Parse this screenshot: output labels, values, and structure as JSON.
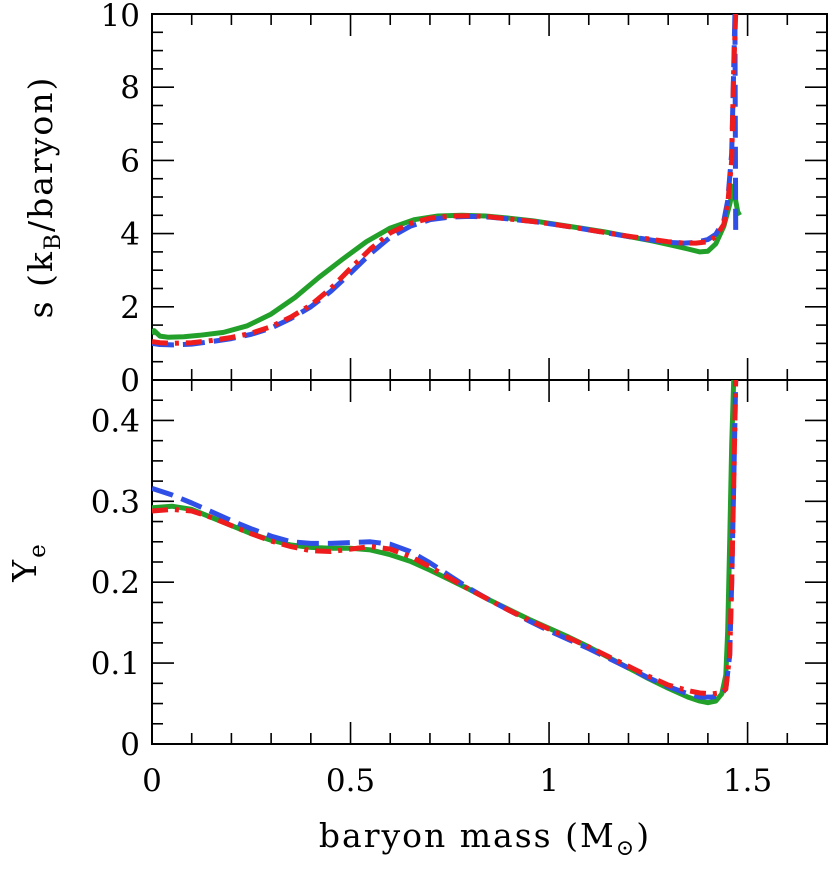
{
  "chart_data": [
    {
      "type": "line",
      "panel": "top",
      "xlabel": "",
      "ylabel": "s (k_B/baryon)",
      "ylabel_parts": {
        "prefix": "s (k",
        "sub": "B",
        "suffix": "/baryon)"
      },
      "xlim": [
        0,
        1.7
      ],
      "ylim": [
        0,
        10
      ],
      "yticks_major": [
        0,
        2,
        4,
        6,
        8,
        10
      ],
      "ytick_labels": [
        "0",
        "2",
        "4",
        "6",
        "8",
        "10"
      ],
      "series": [
        {
          "name": "green-solid",
          "color": "#22a02a",
          "style": "solid",
          "x": [
            0.0,
            0.005,
            0.01,
            0.02,
            0.04,
            0.08,
            0.12,
            0.18,
            0.24,
            0.3,
            0.36,
            0.42,
            0.48,
            0.54,
            0.6,
            0.66,
            0.72,
            0.78,
            0.84,
            0.9,
            0.96,
            1.02,
            1.08,
            1.14,
            1.2,
            1.26,
            1.31,
            1.35,
            1.38,
            1.4,
            1.42,
            1.44,
            1.455,
            1.465,
            1.47,
            1.475,
            1.48
          ],
          "y": [
            1.25,
            1.35,
            1.3,
            1.2,
            1.17,
            1.18,
            1.22,
            1.3,
            1.48,
            1.8,
            2.25,
            2.8,
            3.3,
            3.78,
            4.15,
            4.38,
            4.48,
            4.5,
            4.48,
            4.42,
            4.35,
            4.25,
            4.15,
            4.05,
            3.92,
            3.8,
            3.68,
            3.58,
            3.5,
            3.52,
            3.72,
            4.2,
            4.8,
            5.3,
            4.9,
            4.6,
            4.5
          ]
        },
        {
          "name": "blue-dashed",
          "color": "#2f4fe6",
          "style": "dashed",
          "x": [
            0.0,
            0.02,
            0.05,
            0.1,
            0.15,
            0.2,
            0.25,
            0.3,
            0.35,
            0.4,
            0.45,
            0.5,
            0.55,
            0.6,
            0.65,
            0.7,
            0.75,
            0.8,
            0.85,
            0.9,
            0.96,
            1.02,
            1.08,
            1.14,
            1.2,
            1.26,
            1.3,
            1.34,
            1.37,
            1.4,
            1.42,
            1.44,
            1.45,
            1.46,
            1.465,
            1.468,
            1.47
          ],
          "y": [
            1.0,
            0.97,
            0.96,
            0.98,
            1.05,
            1.13,
            1.25,
            1.42,
            1.68,
            2.0,
            2.42,
            2.92,
            3.45,
            3.9,
            4.2,
            4.38,
            4.45,
            4.47,
            4.45,
            4.4,
            4.33,
            4.24,
            4.14,
            4.03,
            3.92,
            3.82,
            3.76,
            3.74,
            3.76,
            3.84,
            3.98,
            4.35,
            4.9,
            6.2,
            8.5,
            10.0,
            4.1
          ]
        },
        {
          "name": "red-dashdot",
          "color": "#ee1c1c",
          "style": "dashdot",
          "x": [
            0.0,
            0.02,
            0.05,
            0.1,
            0.15,
            0.2,
            0.25,
            0.3,
            0.35,
            0.4,
            0.45,
            0.5,
            0.55,
            0.6,
            0.65,
            0.7,
            0.75,
            0.8,
            0.85,
            0.9,
            0.96,
            1.02,
            1.08,
            1.14,
            1.2,
            1.26,
            1.3,
            1.34,
            1.37,
            1.4,
            1.42,
            1.44,
            1.45,
            1.46,
            1.465,
            1.47
          ],
          "y": [
            1.05,
            1.02,
            1.0,
            1.02,
            1.08,
            1.16,
            1.28,
            1.46,
            1.72,
            2.05,
            2.5,
            3.05,
            3.58,
            4.02,
            4.28,
            4.42,
            4.48,
            4.49,
            4.46,
            4.4,
            4.33,
            4.24,
            4.14,
            4.03,
            3.93,
            3.84,
            3.78,
            3.74,
            3.74,
            3.78,
            3.92,
            4.25,
            4.8,
            6.0,
            8.5,
            10.0
          ]
        }
      ]
    },
    {
      "type": "line",
      "panel": "bottom",
      "xlabel": "baryon mass (M⊙)",
      "xlabel_parts": {
        "prefix": "baryon mass (M",
        "sub": "⊙",
        "suffix": ")"
      },
      "ylabel": "Y_e",
      "ylabel_parts": {
        "prefix": "Y",
        "sub": "e",
        "suffix": ""
      },
      "xlim": [
        0,
        1.7
      ],
      "ylim": [
        0,
        0.45
      ],
      "xticks_major": [
        0,
        0.5,
        1,
        1.5
      ],
      "xtick_labels": [
        "0",
        "0.5",
        "1",
        "1.5"
      ],
      "yticks_major": [
        0,
        0.1,
        0.2,
        0.3,
        0.4
      ],
      "ytick_labels": [
        "0",
        "0.1",
        "0.2",
        "0.3",
        "0.4"
      ],
      "series": [
        {
          "name": "green-solid",
          "color": "#22a02a",
          "style": "solid",
          "x": [
            0.0,
            0.05,
            0.1,
            0.15,
            0.2,
            0.25,
            0.3,
            0.35,
            0.4,
            0.45,
            0.5,
            0.55,
            0.6,
            0.65,
            0.7,
            0.75,
            0.8,
            0.85,
            0.9,
            0.95,
            1.0,
            1.05,
            1.1,
            1.15,
            1.2,
            1.25,
            1.3,
            1.35,
            1.38,
            1.4,
            1.42,
            1.435,
            1.445,
            1.45,
            1.455,
            1.46,
            1.465
          ],
          "y": [
            0.292,
            0.294,
            0.29,
            0.28,
            0.27,
            0.26,
            0.252,
            0.246,
            0.243,
            0.242,
            0.242,
            0.24,
            0.234,
            0.226,
            0.215,
            0.203,
            0.191,
            0.178,
            0.166,
            0.154,
            0.143,
            0.132,
            0.12,
            0.107,
            0.094,
            0.081,
            0.069,
            0.058,
            0.053,
            0.051,
            0.053,
            0.062,
            0.085,
            0.14,
            0.25,
            0.37,
            0.45
          ]
        },
        {
          "name": "blue-dashed",
          "color": "#2f4fe6",
          "style": "dashed",
          "x": [
            0.0,
            0.05,
            0.1,
            0.15,
            0.2,
            0.25,
            0.3,
            0.35,
            0.4,
            0.45,
            0.5,
            0.55,
            0.6,
            0.65,
            0.7,
            0.75,
            0.8,
            0.85,
            0.9,
            0.95,
            1.0,
            1.05,
            1.1,
            1.15,
            1.2,
            1.25,
            1.3,
            1.35,
            1.38,
            1.41,
            1.43,
            1.445,
            1.455,
            1.46,
            1.465,
            1.47
          ],
          "y": [
            0.316,
            0.308,
            0.298,
            0.287,
            0.276,
            0.266,
            0.257,
            0.25,
            0.248,
            0.248,
            0.249,
            0.25,
            0.247,
            0.238,
            0.224,
            0.208,
            0.192,
            0.178,
            0.165,
            0.152,
            0.14,
            0.129,
            0.118,
            0.106,
            0.094,
            0.082,
            0.071,
            0.062,
            0.058,
            0.058,
            0.06,
            0.068,
            0.11,
            0.2,
            0.32,
            0.45
          ]
        },
        {
          "name": "red-dashdot",
          "color": "#ee1c1c",
          "style": "dashdot",
          "x": [
            0.0,
            0.05,
            0.1,
            0.15,
            0.2,
            0.25,
            0.3,
            0.35,
            0.4,
            0.45,
            0.5,
            0.55,
            0.6,
            0.65,
            0.7,
            0.75,
            0.8,
            0.85,
            0.9,
            0.95,
            1.0,
            1.05,
            1.1,
            1.15,
            1.2,
            1.25,
            1.3,
            1.35,
            1.38,
            1.41,
            1.43,
            1.445,
            1.455,
            1.46,
            1.465,
            1.47
          ],
          "y": [
            0.288,
            0.29,
            0.288,
            0.28,
            0.27,
            0.26,
            0.251,
            0.244,
            0.239,
            0.238,
            0.241,
            0.244,
            0.241,
            0.232,
            0.219,
            0.205,
            0.191,
            0.178,
            0.165,
            0.153,
            0.142,
            0.131,
            0.12,
            0.108,
            0.096,
            0.084,
            0.073,
            0.066,
            0.063,
            0.062,
            0.063,
            0.068,
            0.11,
            0.2,
            0.32,
            0.45
          ]
        }
      ]
    }
  ]
}
